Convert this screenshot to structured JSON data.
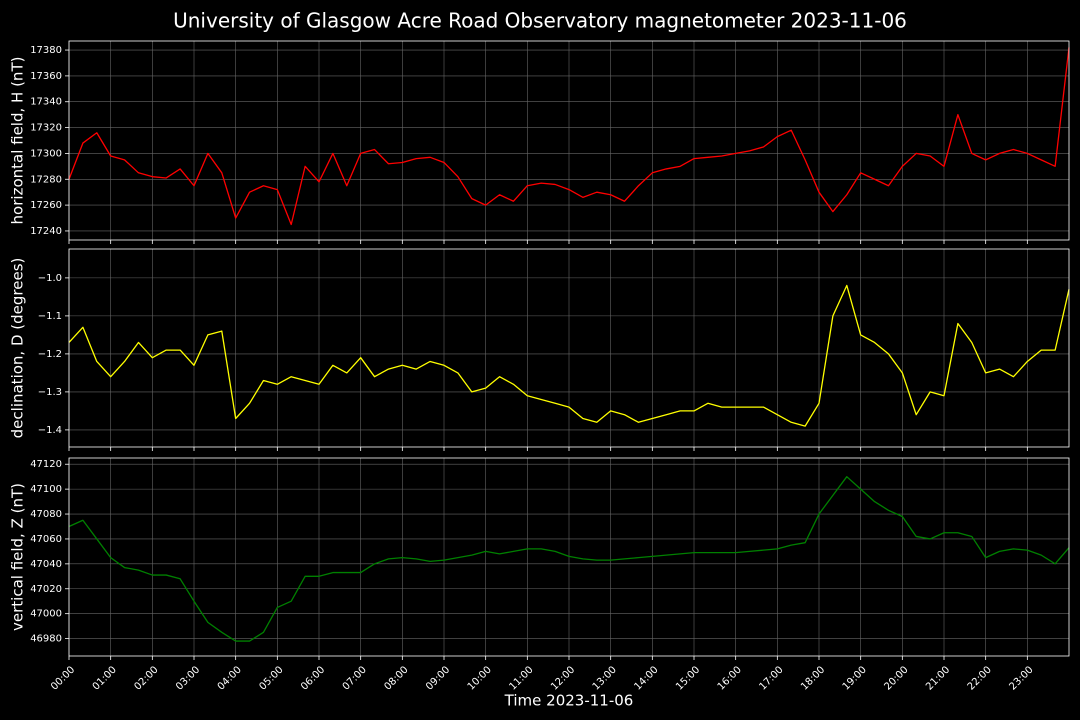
{
  "title": "University of Glasgow Acre Road Observatory magnetometer 2023-11-06",
  "x_axis": {
    "label": "Time 2023-11-06",
    "xlim": [
      0,
      24
    ],
    "xticks": [
      {
        "value": 0,
        "label": "00:00"
      },
      {
        "value": 1,
        "label": "01:00"
      },
      {
        "value": 2,
        "label": "02:00"
      },
      {
        "value": 3,
        "label": "03:00"
      },
      {
        "value": 4,
        "label": "04:00"
      },
      {
        "value": 5,
        "label": "05:00"
      },
      {
        "value": 6,
        "label": "06:00"
      },
      {
        "value": 7,
        "label": "07:00"
      },
      {
        "value": 8,
        "label": "08:00"
      },
      {
        "value": 9,
        "label": "09:00"
      },
      {
        "value": 10,
        "label": "10:00"
      },
      {
        "value": 11,
        "label": "11:00"
      },
      {
        "value": 12,
        "label": "12:00"
      },
      {
        "value": 13,
        "label": "13:00"
      },
      {
        "value": 14,
        "label": "14:00"
      },
      {
        "value": 15,
        "label": "15:00"
      },
      {
        "value": 16,
        "label": "16:00"
      },
      {
        "value": 17,
        "label": "17:00"
      },
      {
        "value": 18,
        "label": "18:00"
      },
      {
        "value": 19,
        "label": "19:00"
      },
      {
        "value": 20,
        "label": "20:00"
      },
      {
        "value": 21,
        "label": "21:00"
      },
      {
        "value": 22,
        "label": "22:00"
      },
      {
        "value": 23,
        "label": "23:00"
      }
    ],
    "x": [
      0,
      0.333,
      0.667,
      1,
      1.333,
      1.667,
      2,
      2.333,
      2.667,
      3,
      3.333,
      3.667,
      4,
      4.333,
      4.667,
      5,
      5.333,
      5.667,
      6,
      6.333,
      6.667,
      7,
      7.333,
      7.667,
      8,
      8.333,
      8.667,
      9,
      9.333,
      9.667,
      10,
      10.333,
      10.667,
      11,
      11.333,
      11.667,
      12,
      12.333,
      12.667,
      13,
      13.333,
      13.667,
      14,
      14.333,
      14.667,
      15,
      15.333,
      15.667,
      16,
      16.333,
      16.667,
      17,
      17.333,
      17.667,
      18,
      18.333,
      18.667,
      19,
      19.333,
      19.667,
      20,
      20.333,
      20.667,
      21,
      21.333,
      21.667,
      22,
      22.333,
      22.667,
      23,
      23.333,
      23.667,
      24
    ]
  },
  "chart_data": [
    {
      "type": "line",
      "ylabel": "horizontal field, H (nT)",
      "color": "#ff0000",
      "grid": true,
      "ylim": [
        17233,
        17387
      ],
      "yticks": [
        17240,
        17260,
        17280,
        17300,
        17320,
        17340,
        17360,
        17380
      ],
      "values": [
        17280,
        17308,
        17316,
        17298,
        17295,
        17285,
        17282,
        17281,
        17288,
        17275,
        17300,
        17285,
        17250,
        17270,
        17275,
        17272,
        17245,
        17290,
        17278,
        17300,
        17275,
        17300,
        17303,
        17292,
        17293,
        17296,
        17297,
        17293,
        17282,
        17265,
        17260,
        17268,
        17263,
        17275,
        17277,
        17276,
        17272,
        17266,
        17270,
        17268,
        17263,
        17275,
        17285,
        17288,
        17290,
        17296,
        17297,
        17298,
        17300,
        17302,
        17305,
        17313,
        17318,
        17295,
        17270,
        17255,
        17268,
        17285,
        17280,
        17275,
        17290,
        17300,
        17298,
        17290,
        17330,
        17300,
        17295,
        17300,
        17303,
        17300,
        17295,
        17290,
        17382
      ]
    },
    {
      "type": "line",
      "ylabel": "declination, D (degrees)",
      "color": "#ffff00",
      "grid": true,
      "ylim": [
        -1.445,
        -0.924
      ],
      "yticks": [
        {
          "value": -1.4,
          "label": "−1.4"
        },
        {
          "value": -1.3,
          "label": "−1.3"
        },
        {
          "value": -1.2,
          "label": "−1.2"
        },
        {
          "value": -1.1,
          "label": "−1.1"
        },
        {
          "value": -1.0,
          "label": "−1.0"
        }
      ],
      "values": [
        -1.17,
        -1.13,
        -1.22,
        -1.26,
        -1.22,
        -1.17,
        -1.21,
        -1.19,
        -1.19,
        -1.23,
        -1.15,
        -1.14,
        -1.37,
        -1.33,
        -1.27,
        -1.28,
        -1.26,
        -1.27,
        -1.28,
        -1.23,
        -1.25,
        -1.21,
        -1.26,
        -1.24,
        -1.23,
        -1.24,
        -1.22,
        -1.23,
        -1.25,
        -1.3,
        -1.29,
        -1.26,
        -1.28,
        -1.31,
        -1.32,
        -1.33,
        -1.34,
        -1.37,
        -1.38,
        -1.35,
        -1.36,
        -1.38,
        -1.37,
        -1.36,
        -1.35,
        -1.35,
        -1.33,
        -1.34,
        -1.34,
        -1.34,
        -1.34,
        -1.36,
        -1.38,
        -1.39,
        -1.33,
        -1.1,
        -1.02,
        -1.15,
        -1.17,
        -1.2,
        -1.25,
        -1.36,
        -1.3,
        -1.31,
        -1.12,
        -1.17,
        -1.25,
        -1.24,
        -1.26,
        -1.22,
        -1.19,
        -1.19,
        -1.03
      ]
    },
    {
      "type": "line",
      "ylabel": "vertical field, Z (nT)",
      "color": "#008000",
      "grid": true,
      "ylim": [
        46966,
        47125
      ],
      "yticks": [
        46980,
        47000,
        47020,
        47040,
        47060,
        47080,
        47100,
        47120
      ],
      "values": [
        47070,
        47075,
        47060,
        47045,
        47037,
        47035,
        47031,
        47031,
        47028,
        47010,
        46993,
        46985,
        46978,
        46978,
        46985,
        47005,
        47010,
        47030,
        47030,
        47033,
        47033,
        47033,
        47040,
        47044,
        47045,
        47044,
        47042,
        47043,
        47045,
        47047,
        47050,
        47048,
        47050,
        47052,
        47052,
        47050,
        47046,
        47044,
        47043,
        47043,
        47044,
        47045,
        47046,
        47047,
        47048,
        47049,
        47049,
        47049,
        47049,
        47050,
        47051,
        47052,
        47055,
        47057,
        47080,
        47095,
        47110,
        47100,
        47090,
        47083,
        47078,
        47062,
        47060,
        47065,
        47065,
        47062,
        47045,
        47050,
        47052,
        47051,
        47047,
        47040,
        47053
      ]
    }
  ]
}
